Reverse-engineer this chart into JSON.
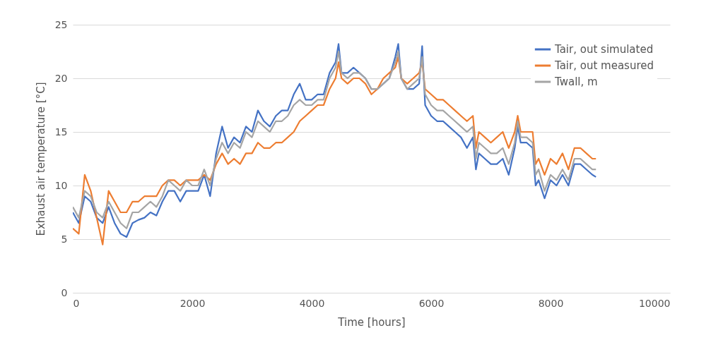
{
  "chart_data": {
    "type": "line",
    "xlabel": "Time  [hours]",
    "ylabel": "Exhaust air temperature [°C]",
    "x": [
      0,
      100,
      200,
      300,
      400,
      500,
      600,
      700,
      800,
      900,
      1000,
      1100,
      1200,
      1300,
      1400,
      1500,
      1600,
      1700,
      1800,
      1900,
      2000,
      2100,
      2200,
      2300,
      2400,
      2500,
      2600,
      2700,
      2800,
      2900,
      3000,
      3100,
      3200,
      3300,
      3400,
      3500,
      3600,
      3700,
      3800,
      3900,
      4000,
      4100,
      4200,
      4300,
      4400,
      4450,
      4500,
      4600,
      4700,
      4800,
      4900,
      5000,
      5100,
      5200,
      5300,
      5400,
      5450,
      5500,
      5600,
      5700,
      5800,
      5850,
      5900,
      6000,
      6100,
      6200,
      6300,
      6400,
      6500,
      6600,
      6700,
      6750,
      6800,
      6900,
      7000,
      7100,
      7200,
      7300,
      7400,
      7450,
      7500,
      7600,
      7700,
      7750,
      7800,
      7900,
      8000,
      8100,
      8200,
      8300,
      8400,
      8500,
      8600,
      8700,
      8760
    ],
    "series": [
      {
        "name": "Tair, out simulated",
        "color": "#4472c4",
        "values": [
          7.5,
          6.5,
          9,
          8.5,
          7,
          6.5,
          8,
          6.5,
          5.5,
          5.2,
          6.5,
          6.8,
          7,
          7.5,
          7.2,
          8.5,
          9.5,
          9.5,
          8.5,
          9.5,
          9.5,
          9.5,
          11,
          9,
          13,
          15.5,
          13.5,
          14.5,
          14,
          15.5,
          15,
          17,
          16,
          15.5,
          16.5,
          17,
          17,
          18.5,
          19.5,
          18,
          18,
          18.5,
          18.5,
          20.5,
          21.5,
          23.2,
          20.5,
          20.5,
          21,
          20.5,
          20,
          19,
          19,
          19.5,
          20,
          22,
          23.2,
          20,
          19,
          19,
          19.5,
          23,
          17.5,
          16.5,
          16,
          16,
          15.5,
          15,
          14.5,
          13.5,
          14.5,
          11.5,
          13,
          12.5,
          12,
          12,
          12.5,
          11,
          13.5,
          15.5,
          14,
          14,
          13.5,
          10,
          10.5,
          8.8,
          10.5,
          10,
          11,
          10,
          12,
          12,
          11.5,
          11,
          10.8
        ]
      },
      {
        "name": "Tair, out measured",
        "color": "#ed7d31",
        "values": [
          6,
          5.5,
          11,
          9.5,
          7,
          4.5,
          9.5,
          8.5,
          7.5,
          7.5,
          8.5,
          8.5,
          9,
          9,
          9,
          10,
          10.5,
          10.5,
          10,
          10.5,
          10.5,
          10.5,
          11,
          10.5,
          12,
          13,
          12,
          12.5,
          12,
          13,
          13,
          14,
          13.5,
          13.5,
          14,
          14,
          14.5,
          15,
          16,
          16.5,
          17,
          17.5,
          17.5,
          19,
          20,
          21.5,
          20,
          19.5,
          20,
          20,
          19.5,
          18.5,
          19,
          20,
          20.5,
          21,
          22,
          20,
          19.5,
          20,
          20.5,
          21.5,
          19,
          18.5,
          18,
          18,
          17.5,
          17,
          16.5,
          16,
          16.5,
          13.5,
          15,
          14.5,
          14,
          14.5,
          15,
          13.5,
          15,
          16.5,
          15,
          15,
          15,
          12,
          12.5,
          11,
          12.5,
          12,
          13,
          11.5,
          13.5,
          13.5,
          13,
          12.5,
          12.5
        ]
      },
      {
        "name": "Twall, m",
        "color": "#a5a5a5",
        "values": [
          8,
          7,
          9.5,
          9,
          7.5,
          7,
          8.5,
          7.5,
          6.5,
          6,
          7.5,
          7.5,
          8,
          8.5,
          8,
          9,
          10.5,
          10,
          9.5,
          10.5,
          10,
          10,
          11.5,
          10,
          12.5,
          14,
          13,
          14,
          13.5,
          15,
          14.5,
          16,
          15.5,
          15,
          16,
          16,
          16.5,
          17.5,
          18,
          17.5,
          17.5,
          18,
          18,
          20,
          21,
          22.5,
          20.5,
          20,
          20.5,
          20.5,
          20,
          19,
          19,
          19.5,
          20,
          21.5,
          22.5,
          20,
          19,
          19.5,
          20,
          22,
          18.5,
          17.5,
          17,
          17,
          16.5,
          16,
          15.5,
          15,
          15.5,
          12.5,
          14,
          13.5,
          13,
          13,
          13.5,
          12,
          14,
          16,
          14.5,
          14.5,
          14,
          11,
          11.5,
          9.5,
          11,
          10.5,
          11.5,
          10.5,
          12.5,
          12.5,
          12,
          11.5,
          11.5
        ]
      }
    ],
    "xlim": [
      0,
      10000
    ],
    "xticks": [
      0,
      2000,
      4000,
      6000,
      8000,
      10000
    ],
    "ylim": [
      0,
      25
    ],
    "yticks": [
      0,
      5,
      10,
      15,
      20,
      25
    ],
    "grid": "y",
    "legend": "top right"
  }
}
